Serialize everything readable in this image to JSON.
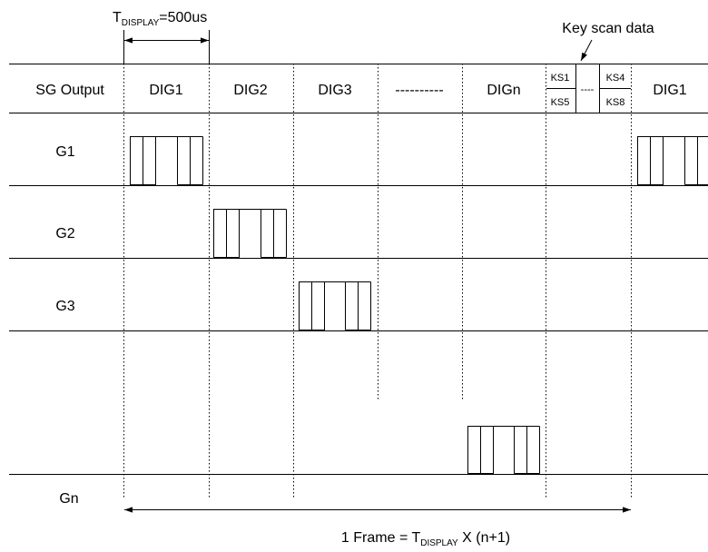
{
  "header": {
    "t_display_label": {
      "main": "T",
      "sub": "DISPLAY",
      "rest": "=500us"
    },
    "key_scan_label": "Key scan data"
  },
  "columns": {
    "row_label": "SG Output",
    "dig1": "DIG1",
    "dig2": "DIG2",
    "dig3": "DIG3",
    "ellipsis": "----------",
    "dign": "DIGn",
    "ks_mid": "----",
    "dig1_repeat": "DIG1"
  },
  "key_scan": {
    "ks1": "KS1",
    "ks5": "KS5",
    "ks4": "KS4",
    "ks8": "KS8"
  },
  "rows": {
    "g1": "G1",
    "g2": "G2",
    "g3": "G3",
    "gn": "Gn"
  },
  "frame_label": {
    "pre": "1 Frame = T",
    "sub": "DISPLAY",
    "post": " X (n+1)"
  }
}
